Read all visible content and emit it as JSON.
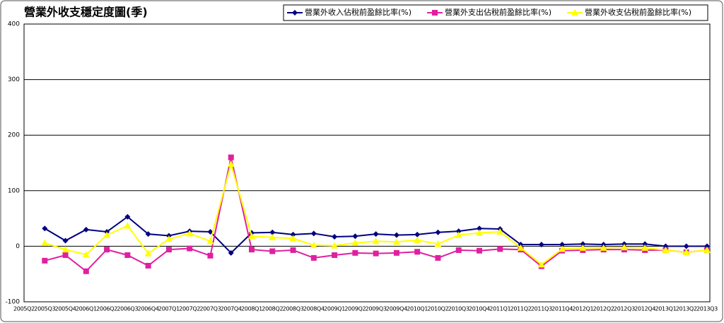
{
  "chart_data": {
    "type": "line",
    "title": "營業外收支穩定度圖(季)",
    "categories": [
      "2005Q2",
      "2005Q3",
      "2005Q4",
      "2006Q1",
      "2006Q2",
      "2006Q3",
      "2006Q4",
      "2007Q1",
      "2007Q2",
      "2007Q3",
      "2007Q4",
      "2008Q1",
      "2008Q2",
      "2008Q3",
      "2008Q4",
      "2009Q1",
      "2009Q2",
      "2009Q3",
      "2009Q4",
      "2010Q1",
      "2010Q2",
      "2010Q3",
      "2010Q4",
      "2011Q1",
      "2011Q2",
      "2011Q3",
      "2011Q4",
      "2012Q1",
      "2012Q2",
      "2012Q3",
      "2012Q4",
      "2013Q1",
      "2013Q2",
      "2013Q3"
    ],
    "series": [
      {
        "name": "營業外收入佔稅前盈餘比率(%)",
        "color": "#000080",
        "marker": "diamond",
        "values": [
          null,
          32,
          10,
          30,
          26,
          53,
          22,
          19,
          27,
          26,
          -12,
          24,
          25,
          21,
          23,
          17,
          18,
          22,
          20,
          21,
          25,
          27,
          32,
          31,
          3,
          3,
          3,
          4,
          3,
          4,
          4,
          0,
          0,
          0
        ]
      },
      {
        "name": "營業外支出佔稅前盈餘比率(%)",
        "color": "#e020a0",
        "marker": "square",
        "values": [
          null,
          -26,
          -16,
          -45,
          -6,
          -16,
          -35,
          -6,
          -4,
          -17,
          160,
          -6,
          -9,
          -7,
          -21,
          -16,
          -12,
          -13,
          -12,
          -10,
          -21,
          -7,
          -8,
          -5,
          -6,
          -36,
          -8,
          -7,
          -6,
          -6,
          -7,
          -7,
          -11,
          -7
        ]
      },
      {
        "name": "營業外收支佔稅前盈餘比率(%)",
        "color": "#ffff00",
        "marker": "triangle",
        "values": [
          null,
          6,
          -6,
          -15,
          20,
          37,
          -13,
          13,
          23,
          9,
          148,
          18,
          16,
          14,
          2,
          1,
          6,
          9,
          8,
          11,
          4,
          20,
          24,
          26,
          -3,
          -33,
          -5,
          -3,
          -3,
          -2,
          -3,
          -7,
          -11,
          -7
        ]
      }
    ],
    "ylim": [
      -100,
      400
    ],
    "yticks": [
      -100,
      0,
      100,
      200,
      300,
      400
    ],
    "grid": true,
    "legend": "top-right"
  }
}
